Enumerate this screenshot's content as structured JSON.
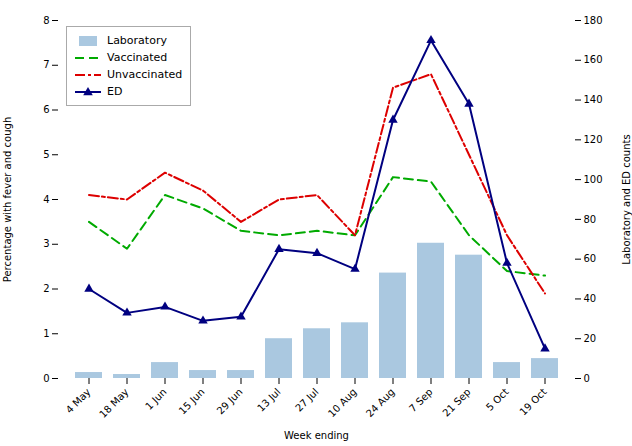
{
  "chart_data": {
    "type": "bar",
    "xlabel": "Week ending",
    "ylabel": "Percentage with fever and cough",
    "y2label": "Laboratory and ED counts",
    "categories": [
      "4 May",
      "18 May",
      "1 Jun",
      "15 Jun",
      "29 Jun",
      "13 Jul",
      "27 Jul",
      "10 Aug",
      "24 Aug",
      "7 Sep",
      "21 Sep",
      "5 Oct",
      "19 Oct"
    ],
    "series": [
      {
        "name": "Laboratory",
        "type": "bar",
        "axis": "y2",
        "color": "#aac8e0",
        "values": [
          3,
          2,
          8,
          4,
          4,
          20,
          25,
          28,
          53,
          68,
          62,
          8,
          10
        ]
      },
      {
        "name": "Vaccinated",
        "type": "line",
        "axis": "y",
        "color": "#00aa00",
        "line_style": "dashed",
        "values": [
          3.5,
          2.9,
          4.1,
          3.8,
          3.3,
          3.2,
          3.3,
          3.2,
          4.5,
          4.4,
          3.2,
          2.4,
          2.3
        ]
      },
      {
        "name": "Unvaccinated",
        "type": "line",
        "axis": "y",
        "color": "#dd0000",
        "line_style": "dashdot",
        "values": [
          4.1,
          4.0,
          4.6,
          4.2,
          3.5,
          4.0,
          4.1,
          3.2,
          6.5,
          6.8,
          5.0,
          3.2,
          1.9
        ]
      },
      {
        "name": "ED",
        "type": "line",
        "axis": "y2",
        "color": "#000080",
        "line_style": "solid",
        "marker": "triangle",
        "values": [
          45,
          33,
          36,
          29,
          31,
          65,
          63,
          55,
          130,
          170,
          138,
          58,
          15
        ]
      }
    ],
    "ylim": [
      0,
      8
    ],
    "yticks": [
      0,
      1,
      2,
      3,
      4,
      5,
      6,
      7,
      8
    ],
    "y2lim": [
      0,
      180
    ],
    "y2ticks": [
      0,
      20,
      40,
      60,
      80,
      100,
      120,
      140,
      160,
      180
    ],
    "grid": false,
    "legend": "upper left"
  }
}
